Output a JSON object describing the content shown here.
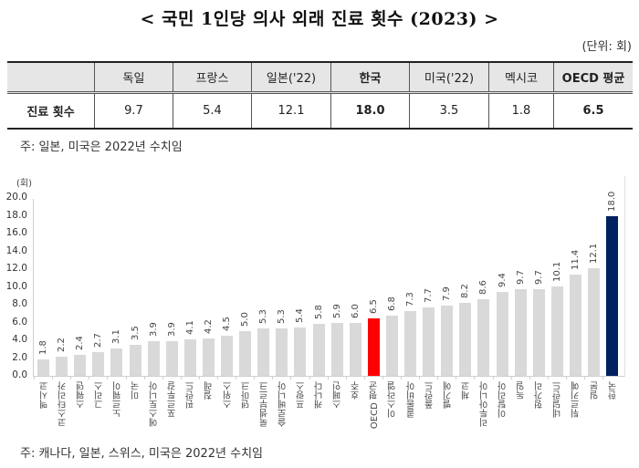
{
  "title": "< 국민 1인당 의사 외래 진료 횟수 (2023) >",
  "unit": "(단위: 회)",
  "table": {
    "headers": [
      "",
      "독일",
      "프랑스",
      "일본('22)",
      "한국",
      "미국('22)",
      "멕시코",
      "OECD 평균"
    ],
    "row_label": "진료 횟수",
    "values": [
      "9.7",
      "5.4",
      "12.1",
      "18.0",
      "3.5",
      "1.8",
      "6.5"
    ]
  },
  "note_table": "주: 일본, 미국은 2022년 수치임",
  "note_chart": "주: 캐나다, 일본, 스위스, 미국은 2022년 수치임",
  "colors": {
    "default_bar": "#d9d9d9",
    "oecd_bar": "#ff0000",
    "korea_bar": "#002060"
  },
  "chart_data": {
    "type": "bar",
    "title": "국민 1인당 의사 외래 진료 횟수 (2023)",
    "xlabel": "",
    "ylabel": "(회)",
    "ylim": [
      0,
      20
    ],
    "yticks": [
      "0.0",
      "2.0",
      "4.0",
      "6.0",
      "8.0",
      "10.0",
      "12.0",
      "14.0",
      "16.0",
      "18.0",
      "20.0"
    ],
    "grid": false,
    "legend": "none",
    "categories": [
      "멕시코",
      "코스타리카",
      "스웨덴",
      "그리스",
      "노르웨이",
      "미국",
      "에스토니아",
      "포르투갈",
      "핀란드",
      "칠레",
      "스위스",
      "덴마크",
      "룩셈부르크",
      "슬로베니아",
      "프랑스",
      "캐나다",
      "스페인",
      "호주",
      "OECD 평균",
      "이스라엘",
      "콜롬비아",
      "폴란드",
      "벨기에",
      "체코",
      "리투아니아",
      "이탈리아",
      "독일",
      "헝가리",
      "네덜란드",
      "튀르키예",
      "일본",
      "한국"
    ],
    "values": [
      1.8,
      2.2,
      2.4,
      2.7,
      3.1,
      3.5,
      3.9,
      3.9,
      4.1,
      4.2,
      4.5,
      5.0,
      5.3,
      5.3,
      5.4,
      5.8,
      5.9,
      6.0,
      6.5,
      6.8,
      7.3,
      7.7,
      7.9,
      8.2,
      8.6,
      9.4,
      9.7,
      9.7,
      10.1,
      11.4,
      12.1,
      18.0
    ],
    "value_labels": [
      "1.8",
      "2.2",
      "2.4",
      "2.7",
      "3.1",
      "3.5",
      "3.9",
      "3.9",
      "4.1",
      "4.2",
      "4.5",
      "5.0",
      "5.3",
      "5.3",
      "5.4",
      "5.8",
      "5.9",
      "6.0",
      "6.5",
      "6.8",
      "7.3",
      "7.7",
      "7.9",
      "8.2",
      "8.6",
      "9.4",
      "9.7",
      "9.7",
      "10.1",
      "11.4",
      "12.1",
      "18.0"
    ],
    "highlight": {
      "OECD 평균": "#ff0000",
      "한국": "#002060"
    }
  }
}
